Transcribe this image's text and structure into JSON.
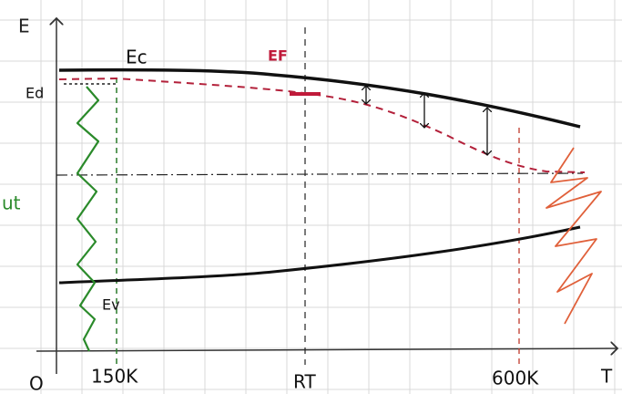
{
  "axes": {
    "energy": "E",
    "temperature": "T",
    "origin": "O"
  },
  "levels": {
    "conduction": "Ec",
    "valence": "Ev",
    "fermi": "EF",
    "donor": "Ed"
  },
  "regions": {
    "freeze_out": "ut"
  },
  "temperatures": {
    "low": "150K",
    "room": "RT",
    "high": "600K"
  }
}
